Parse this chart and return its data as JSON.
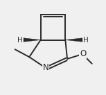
{
  "bg_color": "#f0f0f0",
  "line_color": "#2a2a2a",
  "line_width": 1.4,
  "text_color": "#2a2a2a",
  "label_N": "N",
  "label_O": "O",
  "label_H_left": "H",
  "label_H_right": "H",
  "figsize": [
    1.53,
    1.37
  ],
  "dpi": 100,
  "xlim": [
    0,
    10
  ],
  "ylim": [
    0,
    10
  ]
}
